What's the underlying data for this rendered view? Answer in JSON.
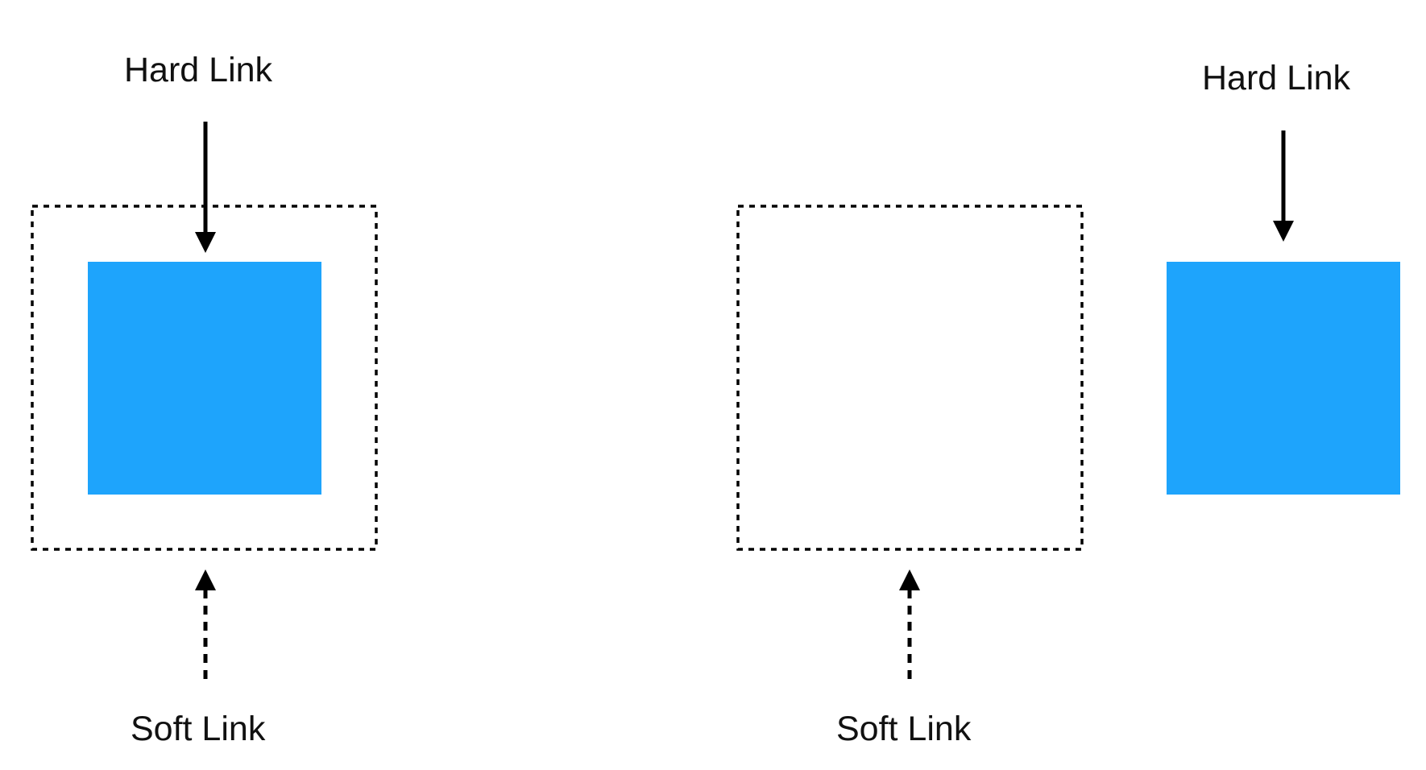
{
  "diagram": {
    "left_scenario": {
      "hard_link_label": "Hard Link",
      "soft_link_label": "Soft Link"
    },
    "right_scenario": {
      "hard_link_label": "Hard Link",
      "soft_link_label": "Soft Link"
    }
  },
  "colors": {
    "file_fill": "#1EA4FC",
    "stroke": "#000000",
    "text": "#111111"
  }
}
